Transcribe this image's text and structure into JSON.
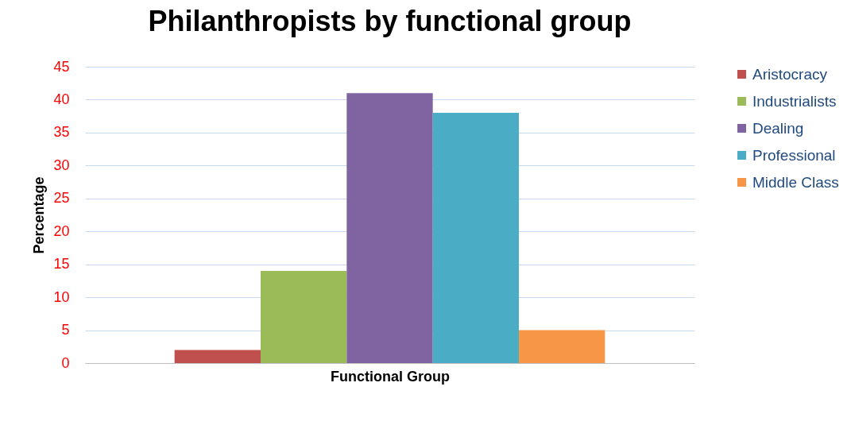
{
  "chart_data": {
    "type": "bar",
    "title": "Philanthropists by functional group",
    "xlabel": "Functional Group",
    "ylabel": "Percentage",
    "categories": [
      null
    ],
    "series": [
      {
        "name": "Aristocracy",
        "color": "#c0504d",
        "values": [
          2
        ]
      },
      {
        "name": "Industrialists",
        "color": "#9bbb59",
        "values": [
          14
        ]
      },
      {
        "name": "Dealing",
        "color": "#8064a2",
        "values": [
          41
        ]
      },
      {
        "name": "Professional",
        "color": "#4bacc6",
        "values": [
          38
        ]
      },
      {
        "name": "Middle Class",
        "color": "#f79646",
        "values": [
          5
        ]
      }
    ],
    "ylim": [
      0,
      45
    ],
    "yticks": [
      0,
      5,
      10,
      15,
      20,
      25,
      30,
      35,
      40,
      45
    ],
    "grid": "y",
    "legend": "right"
  }
}
